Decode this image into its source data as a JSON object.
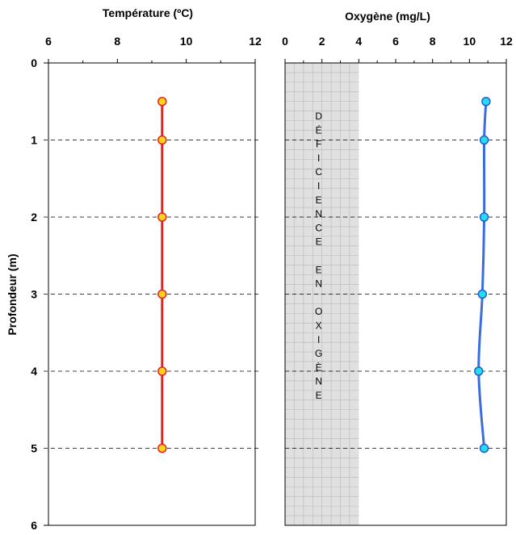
{
  "chart_data": [
    {
      "type": "line",
      "title": "Température (ºC)",
      "xlabel": "Température (ºC)",
      "ylabel": "Profondeur (m)",
      "xlim": [
        6,
        12
      ],
      "ylim": [
        0,
        6
      ],
      "xticks": [
        "6",
        "8",
        "10",
        "12"
      ],
      "yticks": [
        "0",
        "1",
        "2",
        "3",
        "4",
        "5",
        "6"
      ],
      "y_reversed": true,
      "grid": "horizontal dashed at depth ticks",
      "series": [
        {
          "x": [
            9.3,
            9.3,
            9.3,
            9.3,
            9.3,
            9.3
          ],
          "y": [
            0.5,
            1,
            2,
            3,
            4,
            5
          ],
          "line_color": "#e8211c",
          "marker_fill": "#ffd21f",
          "marker_stroke": "#e8211c"
        }
      ]
    },
    {
      "type": "line",
      "title": "Oxygène (mg/L)",
      "xlabel": "Oxygène (mg/L)",
      "xlim": [
        0,
        12
      ],
      "ylim": [
        0,
        6
      ],
      "xticks": [
        "0",
        "2",
        "4",
        "6",
        "8",
        "10",
        "12"
      ],
      "y_reversed": true,
      "grid": "horizontal dashed at depth ticks; fine grid in shaded zone",
      "shaded_region": {
        "x_range": [
          0,
          4
        ],
        "color": "#e0e0e0",
        "label": "DÉFICIENCE EN OXIGÈNE",
        "letters": [
          "D",
          "É",
          "F",
          "I",
          "C",
          "I",
          "E",
          "N",
          "C",
          "E",
          "",
          "E",
          "N",
          "",
          "O",
          "X",
          "I",
          "G",
          "È",
          "N",
          "E"
        ]
      },
      "series": [
        {
          "x": [
            10.9,
            10.8,
            10.8,
            10.7,
            10.5,
            10.8
          ],
          "y": [
            0.5,
            1,
            2,
            3,
            4,
            5
          ],
          "line_color": "#3a6ee0",
          "marker_fill": "#22ddee",
          "marker_stroke": "#2a5bcf"
        }
      ]
    }
  ]
}
